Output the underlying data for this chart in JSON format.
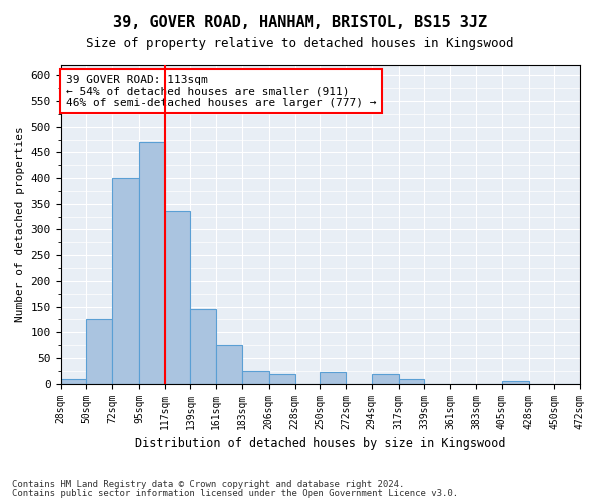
{
  "title": "39, GOVER ROAD, HANHAM, BRISTOL, BS15 3JZ",
  "subtitle": "Size of property relative to detached houses in Kingswood",
  "xlabel": "Distribution of detached houses by size in Kingswood",
  "ylabel": "Number of detached properties",
  "bar_color": "#aac4e0",
  "bar_edge_color": "#5a9fd4",
  "background_color": "#e8eef5",
  "grid_color": "#ffffff",
  "vline_color": "red",
  "annotation_text": "39 GOVER ROAD: 113sqm\n← 54% of detached houses are smaller (911)\n46% of semi-detached houses are larger (777) →",
  "annotation_box_color": "white",
  "annotation_box_edge": "red",
  "footer_line1": "Contains HM Land Registry data © Crown copyright and database right 2024.",
  "footer_line2": "Contains public sector information licensed under the Open Government Licence v3.0.",
  "bin_edges": [
    28,
    50,
    72,
    95,
    117,
    139,
    161,
    183,
    206,
    228,
    250,
    272,
    294,
    317,
    339,
    361,
    383,
    405,
    428,
    450,
    472
  ],
  "bin_heights": [
    10,
    125,
    400,
    470,
    335,
    145,
    75,
    25,
    18,
    0,
    22,
    0,
    18,
    10,
    0,
    0,
    0,
    5,
    0,
    0
  ],
  "ylim": [
    0,
    620
  ],
  "yticks": [
    0,
    50,
    100,
    150,
    200,
    250,
    300,
    350,
    400,
    450,
    500,
    550,
    600
  ]
}
